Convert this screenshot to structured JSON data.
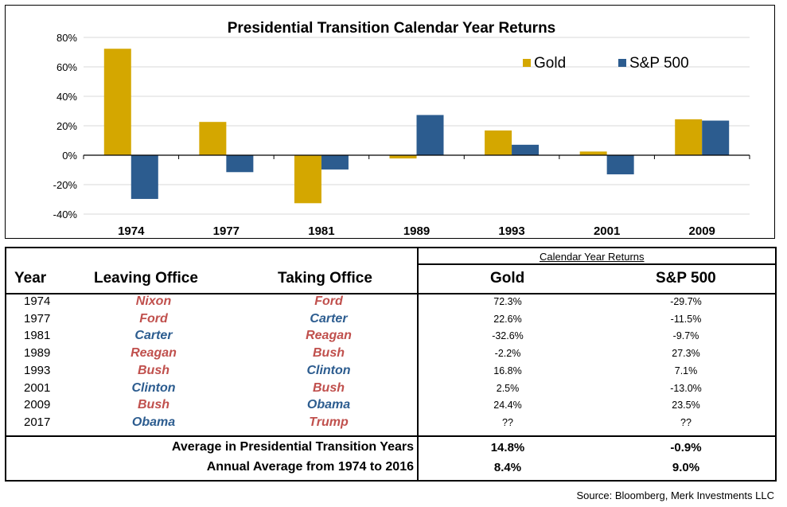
{
  "chart_data": {
    "type": "bar",
    "title": "Presidential Transition Calendar Year Returns",
    "categories": [
      "1974",
      "1977",
      "1981",
      "1989",
      "1993",
      "2001",
      "2009"
    ],
    "series": [
      {
        "name": "Gold",
        "values": [
          72.3,
          22.6,
          -32.6,
          -2.2,
          16.8,
          2.5,
          24.4
        ]
      },
      {
        "name": "S&P 500",
        "values": [
          -29.7,
          -11.5,
          -9.7,
          27.3,
          7.1,
          -13.0,
          23.5
        ]
      }
    ],
    "ylim": [
      -40,
      80
    ],
    "yticks": [
      "80%",
      "60%",
      "40%",
      "20%",
      "0%",
      "-20%",
      "-40%"
    ],
    "grid": true,
    "legend_position": "top-right",
    "colors": {
      "Gold": "#D4A700",
      "S&P 500": "#2C5C8F"
    }
  },
  "table": {
    "group_header": "Calendar Year Returns",
    "headers": {
      "year": "Year",
      "leaving": "Leaving Office",
      "taking": "Taking Office",
      "gold": "Gold",
      "sp500": "S&P 500"
    },
    "rows": [
      {
        "year": "1974",
        "leaving": "Nixon",
        "leaving_party": "R",
        "taking": "Ford",
        "taking_party": "R",
        "gold": "72.3%",
        "sp500": "-29.7%"
      },
      {
        "year": "1977",
        "leaving": "Ford",
        "leaving_party": "R",
        "taking": "Carter",
        "taking_party": "D",
        "gold": "22.6%",
        "sp500": "-11.5%"
      },
      {
        "year": "1981",
        "leaving": "Carter",
        "leaving_party": "D",
        "taking": "Reagan",
        "taking_party": "R",
        "gold": "-32.6%",
        "sp500": "-9.7%"
      },
      {
        "year": "1989",
        "leaving": "Reagan",
        "leaving_party": "R",
        "taking": "Bush",
        "taking_party": "R",
        "gold": "-2.2%",
        "sp500": "27.3%"
      },
      {
        "year": "1993",
        "leaving": "Bush",
        "leaving_party": "R",
        "taking": "Clinton",
        "taking_party": "D",
        "gold": "16.8%",
        "sp500": "7.1%"
      },
      {
        "year": "2001",
        "leaving": "Clinton",
        "leaving_party": "D",
        "taking": "Bush",
        "taking_party": "R",
        "gold": "2.5%",
        "sp500": "-13.0%"
      },
      {
        "year": "2009",
        "leaving": "Bush",
        "leaving_party": "R",
        "taking": "Obama",
        "taking_party": "D",
        "gold": "24.4%",
        "sp500": "23.5%"
      },
      {
        "year": "2017",
        "leaving": "Obama",
        "leaving_party": "D",
        "taking": "Trump",
        "taking_party": "R",
        "gold": "??",
        "sp500": "??"
      }
    ],
    "averages": [
      {
        "label": "Average in Presidential Transition Years",
        "gold": "14.8%",
        "sp500": "-0.9%"
      },
      {
        "label": "Annual Average from 1974 to 2016",
        "gold": "8.4%",
        "sp500": "9.0%"
      }
    ],
    "party_colors": {
      "R": "#C0504D",
      "D": "#2C5C8F"
    }
  },
  "source": "Source: Bloomberg, Merk Investments LLC"
}
